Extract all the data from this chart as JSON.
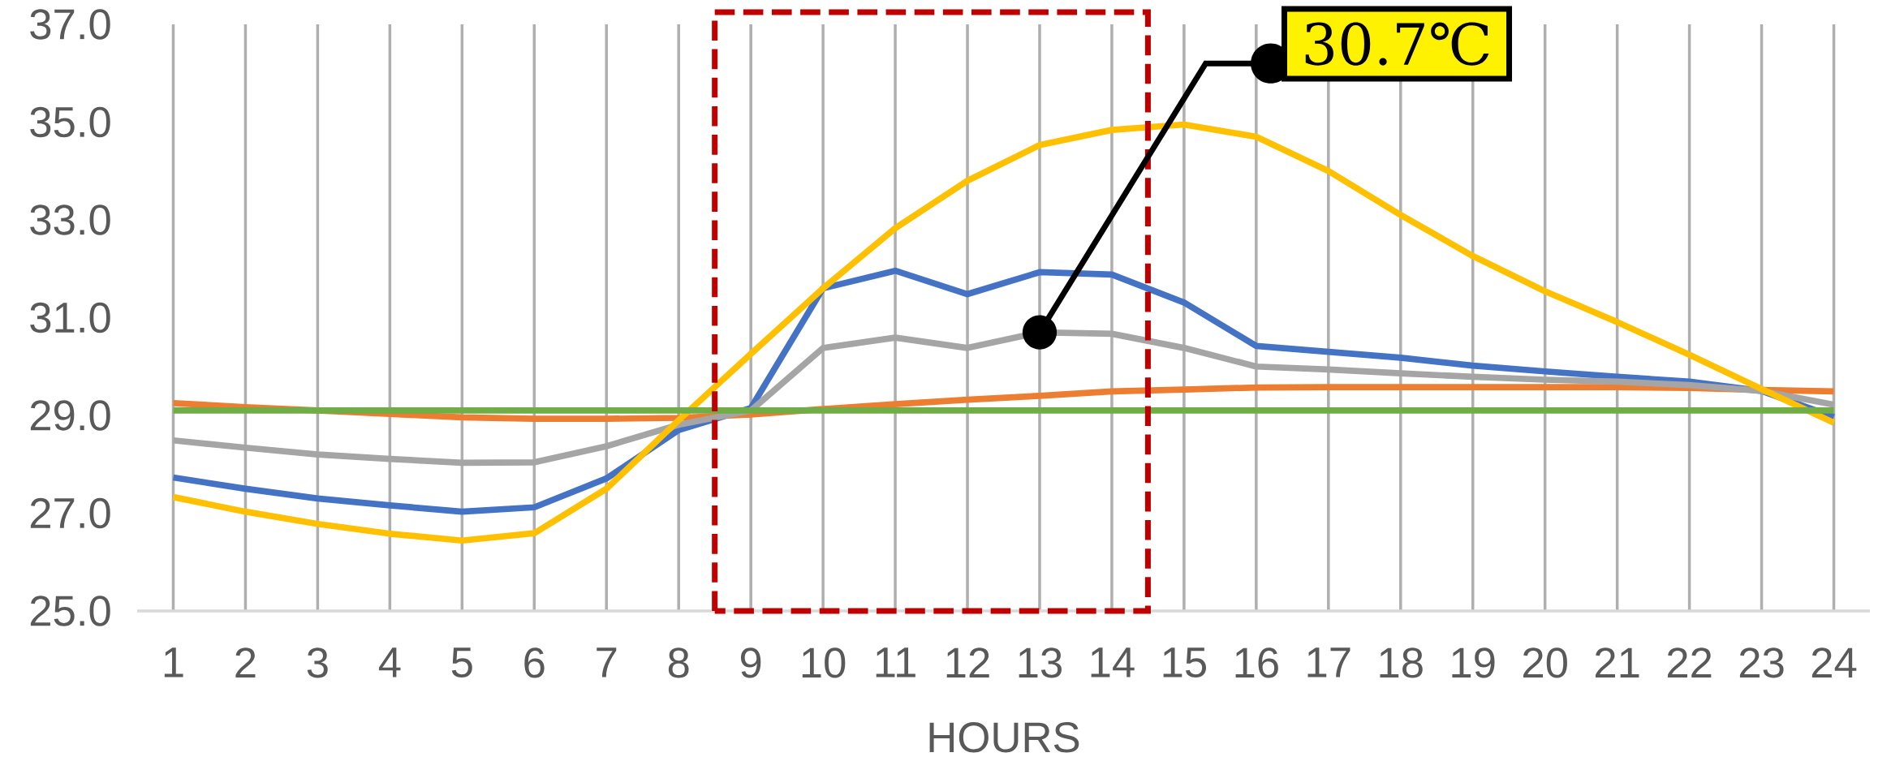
{
  "chart_data": {
    "type": "line",
    "xlabel": "HOURS",
    "categories": [
      "1",
      "2",
      "3",
      "4",
      "5",
      "6",
      "7",
      "8",
      "9",
      "10",
      "11",
      "12",
      "13",
      "14",
      "15",
      "16",
      "17",
      "18",
      "19",
      "20",
      "21",
      "22",
      "23",
      "24"
    ],
    "series": [
      {
        "color": "#4472c4",
        "values": [
          27.73,
          27.5,
          27.3,
          27.16,
          27.03,
          27.12,
          27.71,
          28.7,
          29.15,
          31.6,
          31.96,
          31.48,
          31.93,
          31.88,
          31.31,
          30.42,
          30.3,
          30.18,
          30.02,
          29.9,
          29.79,
          29.69,
          29.5,
          28.97
        ]
      },
      {
        "color": "#ed7d31",
        "values": [
          29.25,
          29.17,
          29.1,
          29.03,
          28.96,
          28.93,
          28.93,
          28.95,
          29.02,
          29.13,
          29.23,
          29.32,
          29.4,
          29.49,
          29.53,
          29.57,
          29.58,
          29.58,
          29.58,
          29.58,
          29.58,
          29.56,
          29.52,
          29.49
        ]
      },
      {
        "color": "#a5a5a5",
        "values": [
          28.49,
          28.34,
          28.2,
          28.11,
          28.03,
          28.04,
          28.37,
          28.81,
          29.1,
          30.38,
          30.59,
          30.38,
          30.7,
          30.67,
          30.38,
          30.0,
          29.94,
          29.86,
          29.79,
          29.73,
          29.69,
          29.62,
          29.5,
          29.22
        ]
      },
      {
        "color": "#ffc000",
        "values": [
          27.33,
          27.03,
          26.78,
          26.58,
          26.44,
          26.59,
          27.5,
          28.9,
          30.26,
          31.6,
          32.83,
          33.8,
          34.53,
          34.84,
          34.95,
          34.7,
          34.0,
          33.1,
          32.26,
          31.54,
          30.91,
          30.24,
          29.54,
          28.85
        ]
      },
      {
        "color": "#70ad47",
        "values": [
          29.1,
          29.1,
          29.1,
          29.1,
          29.1,
          29.1,
          29.1,
          29.1,
          29.1,
          29.1,
          29.1,
          29.1,
          29.1,
          29.1,
          29.1,
          29.1,
          29.1,
          29.1,
          29.1,
          29.1,
          29.1,
          29.1,
          29.1,
          29.1
        ]
      }
    ],
    "ylim": [
      25,
      37
    ],
    "yticks": [
      {
        "value": 25,
        "label": "25.0"
      },
      {
        "value": 27,
        "label": "27.0"
      },
      {
        "value": 29,
        "label": "29.0"
      },
      {
        "value": 31,
        "label": "31.0"
      },
      {
        "value": 33,
        "label": "33.0"
      },
      {
        "value": 35,
        "label": "35.0"
      },
      {
        "value": 37,
        "label": "37.0"
      }
    ],
    "grid": "x",
    "marker": "none",
    "annotations": [
      {
        "text": "30.7℃",
        "x": "13",
        "y": 30.7
      }
    ]
  }
}
